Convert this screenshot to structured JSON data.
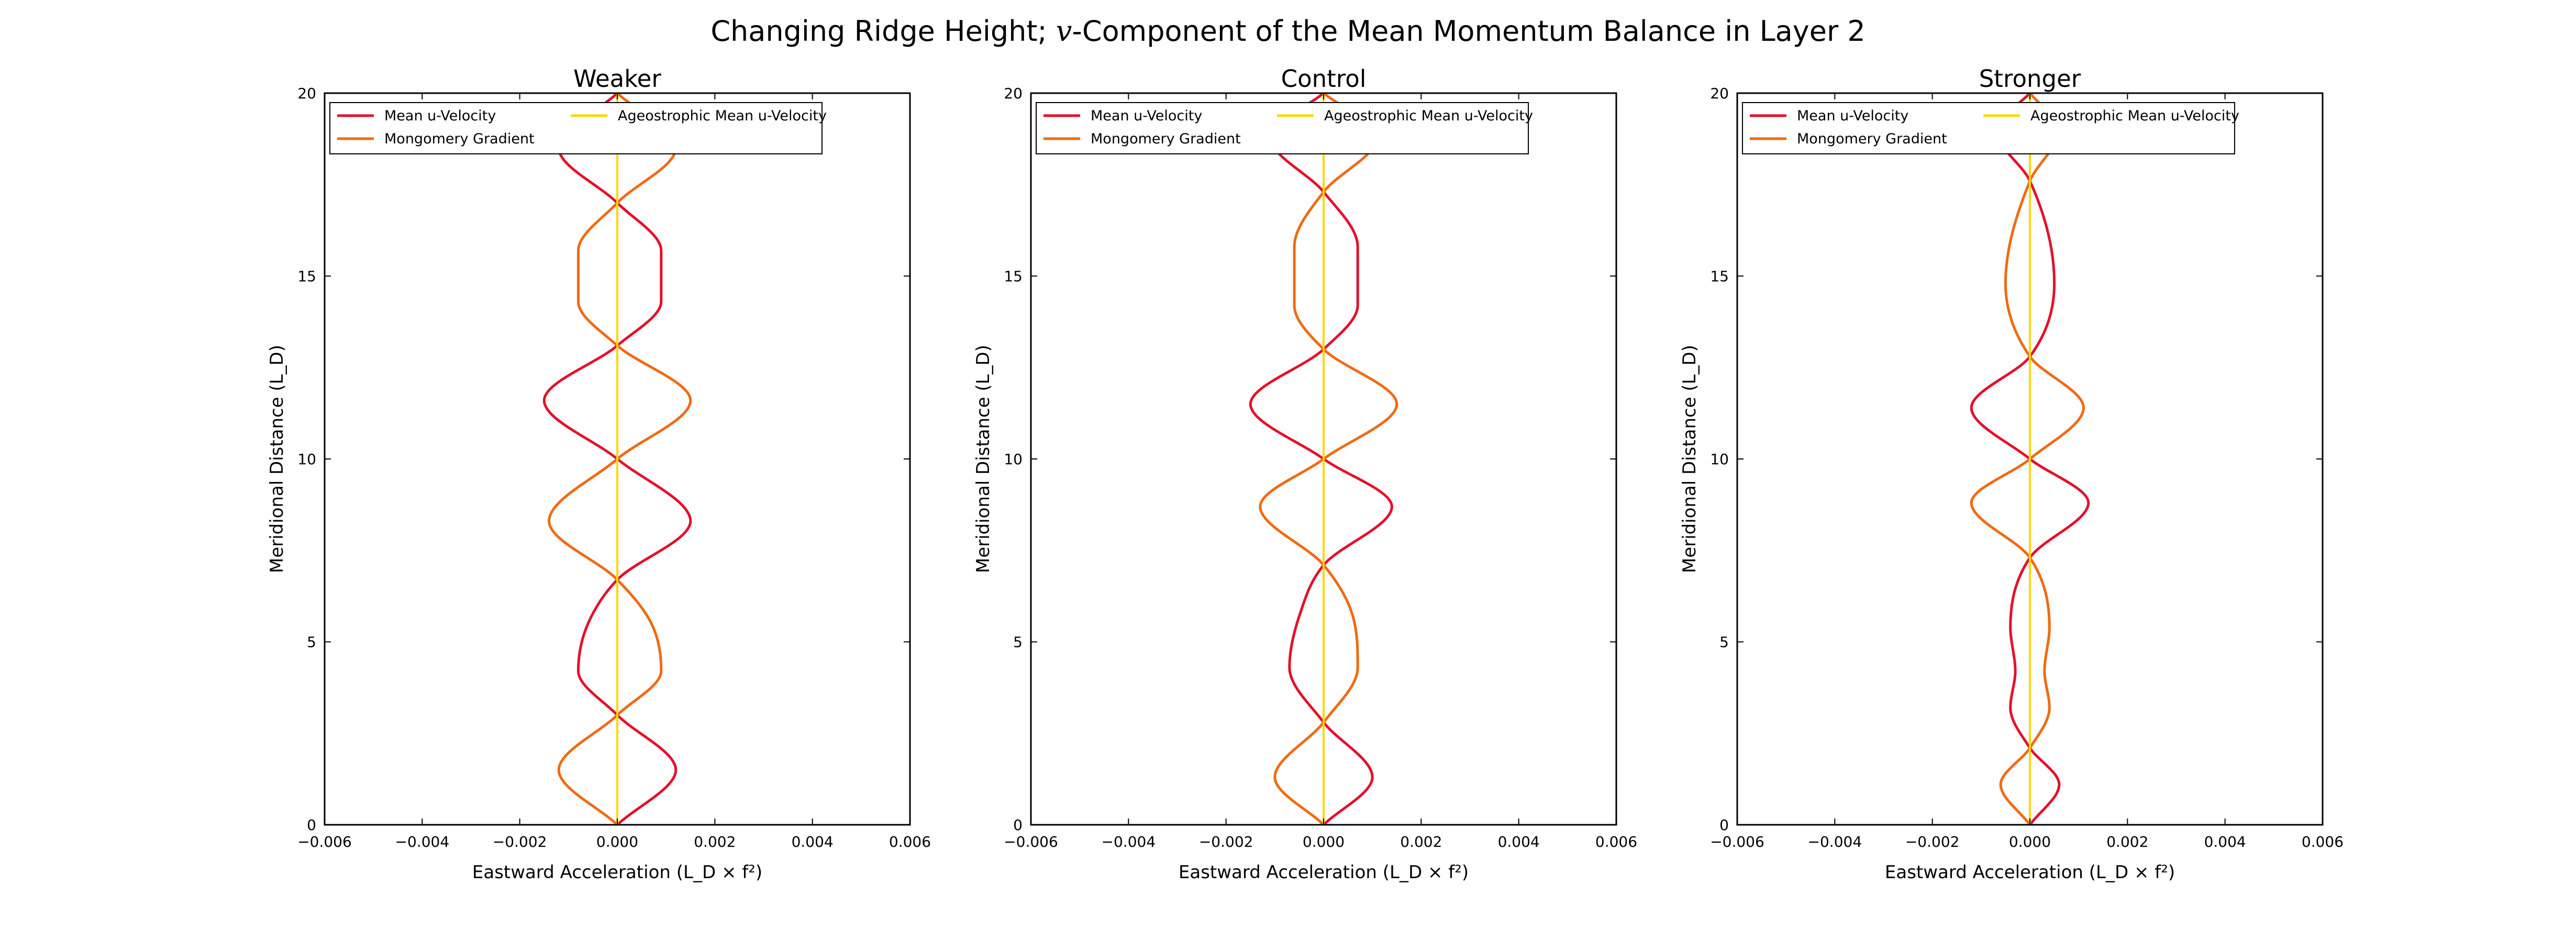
{
  "figure": {
    "title_prefix": "Changing Ridge Height; ",
    "title_var": "v",
    "title_suffix": "-Component of the Mean Momentum Balance in Layer 2"
  },
  "chart_data": [
    {
      "type": "line",
      "title": "Weaker",
      "xlabel": "Eastward Acceleration (L_D × f²)",
      "ylabel": "Meridional Distance (L_D)",
      "xlim": [
        -0.006,
        0.006
      ],
      "ylim": [
        0,
        20
      ],
      "xticks": [
        "−0.006",
        "−0.004",
        "−0.002",
        "0.000",
        "0.002",
        "0.004",
        "0.006"
      ],
      "yticks": [
        "0",
        "5",
        "10",
        "15",
        "20"
      ],
      "legend_position": "upper-left",
      "series": [
        {
          "name": "Mean u-Velocity",
          "color": "#e3102b",
          "y": [
            0,
            1.5,
            3,
            4.2,
            5.5,
            6.7,
            8.3,
            10,
            11.6,
            13.1,
            14.3,
            15.7,
            17,
            18.5,
            20
          ],
          "x": [
            0,
            0.0012,
            0,
            -0.0008,
            -0.0006,
            0,
            0.0015,
            0,
            -0.0015,
            0,
            0.0009,
            0.0009,
            0,
            -0.0012,
            0
          ]
        },
        {
          "name": "Mongomery Gradient",
          "color": "#f06a10",
          "y": [
            0,
            1.5,
            3,
            4.2,
            5.5,
            6.7,
            8.3,
            10,
            11.6,
            13.1,
            14.3,
            15.7,
            17,
            18.5,
            20
          ],
          "x": [
            0,
            -0.0012,
            0,
            0.0009,
            0.0007,
            0,
            -0.0014,
            0,
            0.0015,
            0,
            -0.0008,
            -0.0008,
            0,
            0.0012,
            0
          ]
        },
        {
          "name": "Ageostrophic Mean u-Velocity",
          "color": "#ffd60a",
          "y": [
            0,
            20
          ],
          "x": [
            0,
            0
          ]
        }
      ]
    },
    {
      "type": "line",
      "title": "Control",
      "xlabel": "Eastward Acceleration (L_D × f²)",
      "ylabel": "Meridional Distance (L_D)",
      "xlim": [
        -0.006,
        0.006
      ],
      "ylim": [
        0,
        20
      ],
      "xticks": [
        "−0.006",
        "−0.004",
        "−0.002",
        "0.000",
        "0.002",
        "0.004",
        "0.006"
      ],
      "yticks": [
        "0",
        "5",
        "10",
        "15",
        "20"
      ],
      "legend_position": "upper-left",
      "series": [
        {
          "name": "Mean u-Velocity",
          "color": "#e3102b",
          "y": [
            0,
            1.3,
            2.8,
            4.3,
            5.7,
            7.1,
            8.7,
            10,
            11.5,
            13,
            14.2,
            15.8,
            17.3,
            18.8,
            20
          ],
          "x": [
            0,
            0.001,
            0,
            -0.0007,
            -0.0005,
            0,
            0.0014,
            0,
            -0.0015,
            0,
            0.0007,
            0.0007,
            0,
            -0.0011,
            0
          ]
        },
        {
          "name": "Mongomery Gradient",
          "color": "#f06a10",
          "y": [
            0,
            1.3,
            2.8,
            4.3,
            5.7,
            7.1,
            8.7,
            10,
            11.5,
            13,
            14.2,
            15.8,
            17.3,
            18.8,
            20
          ],
          "x": [
            0,
            -0.001,
            0,
            0.0007,
            0.0006,
            0,
            -0.0013,
            0,
            0.0015,
            0,
            -0.0006,
            -0.0006,
            0,
            0.0011,
            0
          ]
        },
        {
          "name": "Ageostrophic Mean u-Velocity",
          "color": "#ffd60a",
          "y": [
            0,
            20
          ],
          "x": [
            0,
            0
          ]
        }
      ]
    },
    {
      "type": "line",
      "title": "Stronger",
      "xlabel": "Eastward Acceleration (L_D × f²)",
      "ylabel": "Meridional Distance (L_D)",
      "xlim": [
        -0.006,
        0.006
      ],
      "ylim": [
        0,
        20
      ],
      "xticks": [
        "−0.006",
        "−0.004",
        "−0.002",
        "0.000",
        "0.002",
        "0.004",
        "0.006"
      ],
      "yticks": [
        "0",
        "5",
        "10",
        "15",
        "20"
      ],
      "legend_position": "upper-left",
      "series": [
        {
          "name": "Mean u-Velocity",
          "color": "#e3102b",
          "y": [
            0,
            1.1,
            2.1,
            3.2,
            4.2,
            5.4,
            7.3,
            8.8,
            10,
            11.4,
            12.8,
            14.8,
            17.6,
            19,
            20
          ],
          "x": [
            0,
            0.0006,
            0,
            -0.0004,
            -0.0003,
            -0.0004,
            0,
            0.0012,
            0,
            -0.0012,
            0,
            0.0005,
            0,
            -0.0007,
            0
          ]
        },
        {
          "name": "Mongomery Gradient",
          "color": "#f06a10",
          "y": [
            0,
            1.1,
            2.1,
            3.2,
            4.2,
            5.4,
            7.3,
            8.8,
            10,
            11.4,
            12.8,
            14.8,
            17.6,
            19,
            20
          ],
          "x": [
            0,
            -0.0006,
            0,
            0.0004,
            0.0003,
            0.0004,
            0,
            -0.0012,
            0,
            0.0011,
            0,
            -0.0005,
            0,
            0.0006,
            0
          ]
        },
        {
          "name": "Ageostrophic Mean u-Velocity",
          "color": "#ffd60a",
          "y": [
            0,
            20
          ],
          "x": [
            0,
            0
          ]
        }
      ]
    }
  ]
}
